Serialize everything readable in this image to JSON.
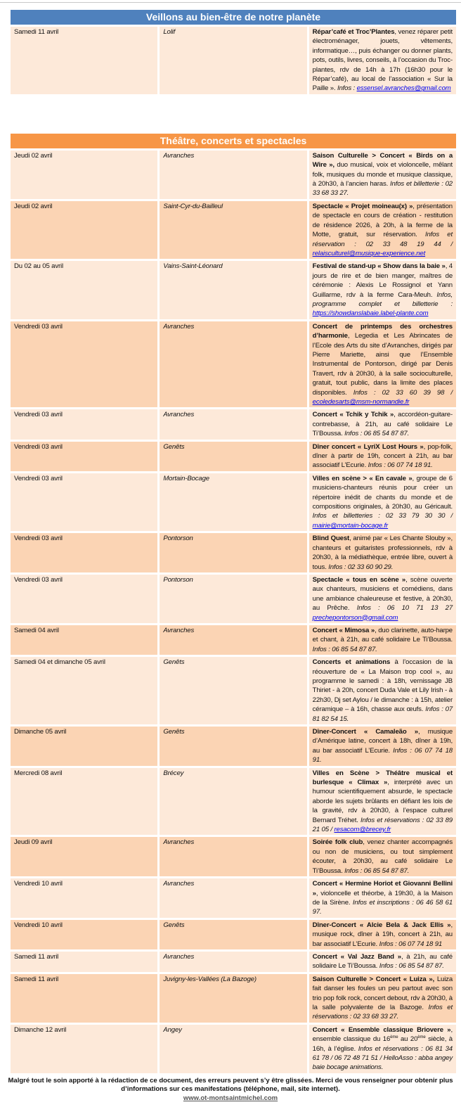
{
  "sections": [
    {
      "title": "Veillons au bien-être de notre planète",
      "color": "#4f81bd",
      "rows": [
        {
          "date": "Samedi 11 avril",
          "town": "Lolif",
          "desc": [
            [
              "b",
              "Répar’café et Troc’Plantes"
            ],
            [
              "n",
              ", venez réparer petit électroménager, jouets, vêtements, informatique…, puis échanger ou donner plants, pots, outils, livres, conseils, à l’occasion du Troc-plantes, rdv de 14h à 17h (16h30 pour le Répar’café), au local de l’association « Sur la Paille ». "
            ],
            [
              "i",
              "Infos : "
            ],
            [
              "a",
              "essensel.avranches@gmail.com"
            ]
          ]
        }
      ]
    },
    {
      "title": "Théâtre, concerts et spectacles",
      "color": "#f79646",
      "rows": [
        {
          "date": "Jeudi 02 avril",
          "town": "Avranches",
          "desc": [
            [
              "b",
              "Saison Culturelle > Concert « Birds on a Wire »,"
            ],
            [
              "n",
              " duo musical, voix et violoncelle, mêlant folk, musiques du monde et musique classique, à 20h30, à l’ancien haras. "
            ],
            [
              "i",
              "Infos et billetterie : 02 33 68 33 27."
            ]
          ]
        },
        {
          "date": "Jeudi 02 avril",
          "town": "Saint-Cyr-du-Bailleul",
          "desc": [
            [
              "b",
              "Spectacle « Projet moineau(x) »"
            ],
            [
              "n",
              ", présentation de spectacle en cours de création - restitution de résidence 2026, à 20h, à la ferme de la Motte, gratuit, sur réservation. "
            ],
            [
              "i",
              "Infos et réservation : 02 33 48 19 44 / "
            ],
            [
              "a",
              "relaisculturel@musique-experience.net"
            ]
          ]
        },
        {
          "date": "Du 02 au 05 avril",
          "town": "Vains-Saint-Léonard",
          "desc": [
            [
              "b",
              "Festival de stand-up « Show dans la baie »"
            ],
            [
              "n",
              ", 4 jours de rire et de bien manger, maîtres de cérémonie : Alexis Le Rossignol et Yann Guillarme, rdv à la ferme Cara-Meuh. "
            ],
            [
              "i",
              "Infos, programme complet et billetterie : "
            ],
            [
              "a",
              "https://showdanslabaie.label-plante.com"
            ]
          ]
        },
        {
          "date": "Vendredi 03 avril",
          "town": "Avranches",
          "desc": [
            [
              "b",
              "Concert de printemps des orchestres d’harmonie"
            ],
            [
              "n",
              ", Legedia et Les Abrincates de l’Ecole des Arts du site d’Avranches, dirigés par Pierre Mariette, ainsi que l’Ensemble Instrumental de Pontorson, dirigé par Denis Travert, rdv à 20h30, à la salle socioculturelle, gratuit, tout public, dans la limite des places disponibles. "
            ],
            [
              "i",
              "Infos : 02 33 60 39 98 / "
            ],
            [
              "a",
              "ecoledesarts@msm-normandie.fr"
            ]
          ]
        },
        {
          "date": "Vendredi 03 avril",
          "town": "Avranches",
          "desc": [
            [
              "b",
              "Concert « Tchik y Tchik »"
            ],
            [
              "n",
              ", accordéon-guitare-contrebasse, à 21h, au café solidaire Le Ti’Boussa. "
            ],
            [
              "i",
              "Infos : 06 85 54 87 87."
            ]
          ]
        },
        {
          "date": "Vendredi 03 avril",
          "town": "Genêts",
          "desc": [
            [
              "b",
              "Dîner concert « LyriX Lost Hours »"
            ],
            [
              "n",
              ", pop-folk, dîner à partir de 19h, concert à 21h, au bar associatif L’Ecurie. "
            ],
            [
              "i",
              "Infos : 06 07 74 18 91."
            ]
          ]
        },
        {
          "date": "Vendredi 03 avril",
          "town": "Mortain-Bocage",
          "desc": [
            [
              "b",
              "Villes en scène > « En cavale »"
            ],
            [
              "n",
              ", groupe de 6 musiciens-chanteurs réunis pour créer un répertoire inédit de chants du monde et de compositions originales, à 20h30, au Géricault. "
            ],
            [
              "i",
              "Infos et billetteries : 02 33 79 30 30 / "
            ],
            [
              "a",
              "mairie@mortain-bocage.fr"
            ]
          ]
        },
        {
          "date": "Vendredi 03 avril",
          "town": "Pontorson",
          "desc": [
            [
              "b",
              "Blind Quest"
            ],
            [
              "n",
              ", animé par « Les Chante Slouby », chanteurs et guitaristes professionnels, rdv à 20h30, à la médiathèque, entrée libre, ouvert à tous. "
            ],
            [
              "i",
              "Infos : 02 33 60 90 29."
            ]
          ]
        },
        {
          "date": "Vendredi 03 avril",
          "town": "Pontorson",
          "desc": [
            [
              "b",
              "Spectacle « tous en scène »"
            ],
            [
              "n",
              ", scène ouverte aux chanteurs, musiciens et comédiens, dans une ambiance chaleureuse et festive, à 20h30, au Prêche. "
            ],
            [
              "i",
              "Infos : 06 10 71 13 27 "
            ],
            [
              "a",
              "prechepontorson@gmail.com"
            ]
          ]
        },
        {
          "date": "Samedi 04 avril",
          "town": "Avranches",
          "desc": [
            [
              "b",
              "Concert « Mimosa »"
            ],
            [
              "n",
              ", duo clarinette, auto-harpe et chant, à 21h, au café solidaire Le Ti’Boussa. "
            ],
            [
              "i",
              "Infos : 06 85 54 87 87."
            ]
          ]
        },
        {
          "date": "Samedi 04 et dimanche 05 avril",
          "town": "Genêts",
          "desc": [
            [
              "b",
              "Concerts et animations"
            ],
            [
              "n",
              " à l’occasion de la réouverture de « La Maison trop cool », au programme le samedi : à 18h, vernissage JB Thiriet - à 20h, concert Duda Vale et Lily Irish - à 22h30, Dj set Aylou / le dimanche : à 15h, atelier céramique – à 16h, chasse aux œufs. "
            ],
            [
              "i",
              "Infos : 07 81 82 54 15."
            ]
          ]
        },
        {
          "date": "Dimanche 05 avril",
          "town": "Genêts",
          "desc": [
            [
              "b",
              "Dîner-Concert « Camaleão »"
            ],
            [
              "n",
              ", musique d’Amérique latine, concert à 18h, dîner à 19h, au bar associatif L’Ecurie. "
            ],
            [
              "i",
              "Infos : 06 07 74 18 91."
            ]
          ]
        },
        {
          "date": "Mercredi 08 avril",
          "town": "Brécey",
          "desc": [
            [
              "b",
              "Villes en Scène > Théâtre musical et burlesque « Climax »"
            ],
            [
              "n",
              ", interprété avec un humour scientifiquement absurde, le spectacle aborde les sujets brûlants en défiant les lois de la gravité, rdv à 20h30, à l’espace culturel Bernard Tréhet. "
            ],
            [
              "i",
              "Infos et réservations : 02 33 89 21 05 / "
            ],
            [
              "a",
              "resacom@brecey.fr"
            ]
          ]
        },
        {
          "date": "Jeudi 09 avril",
          "town": "Avranches",
          "desc": [
            [
              "b",
              "Soirée folk club"
            ],
            [
              "n",
              ", venez chanter accompagnés ou non de musiciens, ou tout simplement écouter, à 20h30, au café solidaire Le Ti’Boussa. "
            ],
            [
              "i",
              "Infos : 06 85 54 87 87."
            ]
          ]
        },
        {
          "date": "Vendredi 10 avril",
          "town": "Avranches",
          "desc": [
            [
              "b",
              "Concert « Hermine Horiot et Giovanni Bellini »"
            ],
            [
              "n",
              ", violoncelle et théorbe, à 19h30, à la Maison de la Sirène. "
            ],
            [
              "i",
              "Infos et inscriptions : 06 46 58 61 97."
            ]
          ]
        },
        {
          "date": "Vendredi 10 avril",
          "town": "Genêts",
          "desc": [
            [
              "b",
              "Dîner-Concert « Alcie Bela & Jack Ellis »"
            ],
            [
              "n",
              ", musique rock, dîner à 19h, concert à 21h, au bar associatif L’Ecurie.  "
            ],
            [
              "i",
              "Infos : 06 07 74 18 91"
            ]
          ]
        },
        {
          "date": "Samedi 11 avril",
          "town": "Avranches",
          "desc": [
            [
              "b",
              "Concert « Val Jazz Band »"
            ],
            [
              "n",
              ", à 21h, au café solidaire Le Ti’Boussa. "
            ],
            [
              "i",
              "Infos : 06 85 54 87 87."
            ]
          ]
        },
        {
          "date": "Samedi 11 avril",
          "town": "Juvigny-les-Vallées (La Bazoge)",
          "desc": [
            [
              "b",
              "Saison Culturelle > Concert « Luiza »,"
            ],
            [
              "n",
              " Luiza fait danser les foules un peu partout avec son trio pop folk rock, concert debout, rdv à 20h30, à la salle polyvalente de la Bazoge. "
            ],
            [
              "i",
              "Infos et réservations : 02 33 68 33 27."
            ]
          ]
        },
        {
          "date": "Dimanche 12 avril",
          "town": "Angey",
          "desc": [
            [
              "b",
              "Concert « Ensemble classique Briovere »"
            ],
            [
              "n",
              ", ensemble classique du 16"
            ],
            [
              "sup",
              "ème"
            ],
            [
              "n",
              " au 20"
            ],
            [
              "sup",
              "ème"
            ],
            [
              "n",
              " siècle, à 16h, à l’église.  "
            ],
            [
              "i",
              "Infos et réservations : 06 81 34 61 78 / 06 72 48 71 51 / HelloAsso : abba angey baie bocage animations."
            ]
          ]
        }
      ]
    }
  ],
  "footer": {
    "notice": "Malgré tout le soin apporté à la rédaction de ce document, des erreurs peuvent s’y être glissées. Merci de vous renseigner pour obtenir plus d’informations sur ces manifestations (téléphone, mail, site internet).",
    "url": "www.ot-montsaintmichel.com"
  }
}
